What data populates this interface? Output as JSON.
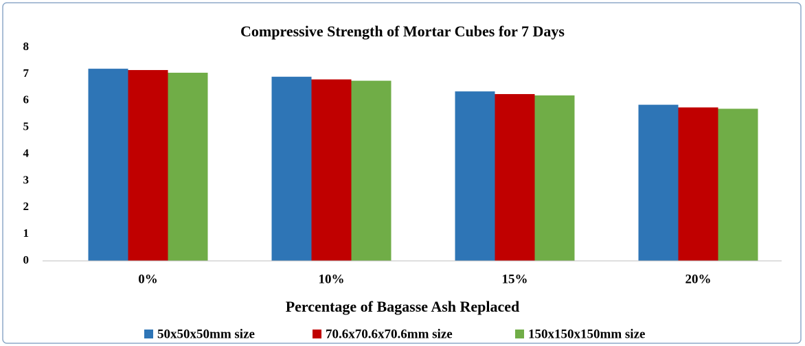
{
  "chart_data": {
    "type": "bar",
    "title": "Compressive Strength of Mortar Cubes for 7 Days",
    "x_label": "Percentage of Bagasse Ash Replaced",
    "categories": [
      "0%",
      "10%",
      "15%",
      "20%"
    ],
    "series": [
      {
        "name": "50x50x50mm size",
        "color": "#2e75b6",
        "values": [
          7.2,
          6.9,
          6.35,
          5.85
        ]
      },
      {
        "name": "70.6x70.6x70.6mm size",
        "color": "#c00000",
        "values": [
          7.15,
          6.8,
          6.25,
          5.75
        ]
      },
      {
        "name": "150x150x150mm size",
        "color": "#70ad47",
        "values": [
          7.05,
          6.75,
          6.2,
          5.7
        ]
      }
    ],
    "ylim": [
      0,
      8
    ],
    "yticks": [
      0,
      1,
      2,
      3,
      4,
      5,
      6,
      7,
      8
    ],
    "grid": false,
    "legend": "bottom"
  }
}
